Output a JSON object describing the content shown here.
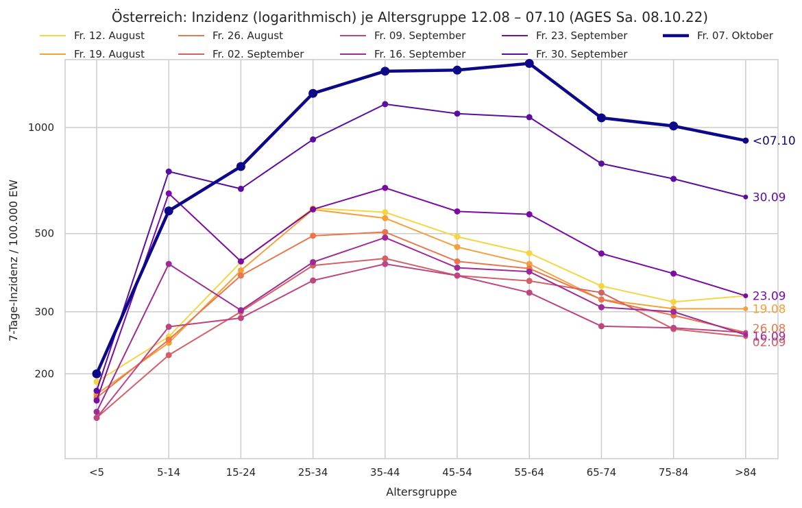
{
  "chart_data": {
    "type": "line",
    "title": "Österreich: Inzidenz (logarithmisch) je Altersgruppe 12.08 – 07.10 (AGES Sa. 08.10.22)",
    "xlabel": "Altersgruppe",
    "ylabel": "7-Tage-Inzidenz / 100.000 EW",
    "y_scale": "log",
    "ylim": [
      140,
      1900
    ],
    "y_ticks": [
      200,
      300,
      500,
      1000
    ],
    "grid": true,
    "legend_position": "top",
    "categories": [
      "<5",
      "5-14",
      "15-24",
      "25-34",
      "35-44",
      "45-54",
      "55-64",
      "65-74",
      "75-84",
      ">84"
    ],
    "series": [
      {
        "name": "Fr. 12. August",
        "end_label": "",
        "color": "#f6d543",
        "values": [
          190,
          255,
          415,
          590,
          575,
          490,
          440,
          355,
          320,
          333
        ]
      },
      {
        "name": "Fr. 19. August",
        "end_label": "19.08",
        "color": "#f5a038",
        "values": [
          175,
          245,
          393,
          585,
          553,
          458,
          410,
          325,
          306,
          306
        ]
      },
      {
        "name": "Fr. 26. August",
        "end_label": "26.08",
        "color": "#e8774e",
        "values": [
          171,
          250,
          380,
          493,
          505,
          417,
          398,
          325,
          293,
          262
        ]
      },
      {
        "name": "Fr. 02. September",
        "end_label": "02.09",
        "color": "#d45f64",
        "values": [
          150,
          226,
          300,
          406,
          425,
          380,
          367,
          340,
          268,
          255
        ]
      },
      {
        "name": "Fr. 09. September",
        "end_label": "",
        "color": "#bd4580",
        "values": [
          150,
          272,
          288,
          368,
          410,
          380,
          340,
          273,
          270,
          262
        ]
      },
      {
        "name": "Fr. 16. September",
        "end_label": "16.09",
        "color": "#9d2a97",
        "values": [
          156,
          410,
          303,
          415,
          487,
          400,
          390,
          309,
          300,
          258
        ]
      },
      {
        "name": "Fr. 23. September",
        "end_label": "23.09",
        "color": "#7b0aa4",
        "values": [
          168,
          650,
          417,
          586,
          674,
          578,
          567,
          439,
          385,
          333
        ]
      },
      {
        "name": "Fr. 30. September",
        "end_label": "30.09",
        "color": "#5a0ea1",
        "values": [
          179,
          750,
          670,
          925,
          1165,
          1095,
          1070,
          790,
          715,
          635
        ]
      },
      {
        "name": "Fr. 07. Oktober",
        "end_label": "<07.10",
        "color": "#0d0887",
        "values": [
          200,
          580,
          775,
          1250,
          1445,
          1455,
          1520,
          1065,
          1010,
          918
        ]
      }
    ]
  }
}
